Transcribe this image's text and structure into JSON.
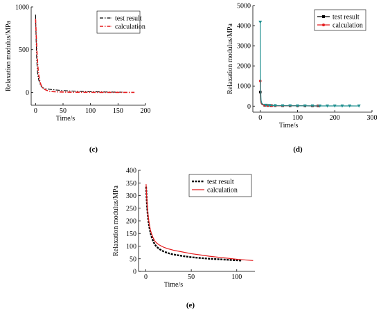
{
  "chart_data": [
    {
      "panel": "(c)",
      "type": "line",
      "xlabel": "Time/s",
      "ylabel": "Relaxation modulus/MPa",
      "xlim": [
        -8,
        200
      ],
      "ylim": [
        -150,
        1000
      ],
      "xticks": [
        0,
        50,
        100,
        150,
        200
      ],
      "yticks": [
        0,
        500,
        1000
      ],
      "legend_position": "top-right",
      "series": [
        {
          "name": "test result",
          "color": "#000000",
          "style": "dash-dot",
          "x": [
            0,
            1,
            2,
            3,
            4,
            5,
            6,
            8,
            10,
            12,
            15,
            20,
            25,
            30,
            40,
            50,
            60,
            80,
            100,
            120,
            140,
            158
          ],
          "y": [
            910,
            620,
            400,
            280,
            210,
            170,
            140,
            100,
            75,
            60,
            50,
            42,
            37,
            33,
            27,
            22,
            18,
            12,
            8,
            6,
            4,
            3
          ]
        },
        {
          "name": "calculation",
          "color": "#e41a1c",
          "style": "dash-dot",
          "x": [
            0,
            1,
            2,
            3,
            4,
            5,
            6,
            8,
            10,
            12,
            15,
            20,
            25,
            30,
            40,
            60,
            80,
            100,
            120,
            150,
            180
          ],
          "y": [
            860,
            700,
            550,
            420,
            320,
            250,
            195,
            125,
            85,
            60,
            40,
            25,
            15,
            10,
            6,
            3,
            2,
            1,
            0,
            0,
            0
          ]
        }
      ]
    },
    {
      "panel": "(d)",
      "type": "line",
      "xlabel": "Time/s",
      "ylabel": "Relaxation modulus/MPa",
      "xlim": [
        -20,
        300
      ],
      "ylim": [
        -300,
        5000
      ],
      "xticks": [
        0,
        100,
        200,
        300
      ],
      "yticks": [
        0,
        1000,
        2000,
        3000,
        4000,
        5000
      ],
      "legend_position": "top-right",
      "series": [
        {
          "name": "test result",
          "color": "#000000",
          "style": "solid-square-markers",
          "x": [
            0,
            0.5,
            1,
            2,
            3,
            5,
            8,
            12,
            20,
            30,
            40,
            60,
            80,
            100,
            120,
            140,
            155
          ],
          "y": [
            700,
            450,
            300,
            180,
            120,
            80,
            55,
            40,
            30,
            25,
            22,
            18,
            15,
            13,
            12,
            11,
            10
          ]
        },
        {
          "name": "calculation",
          "color": "#e41a1c",
          "style": "solid-circle-markers",
          "x": [
            0,
            0.5,
            1,
            2,
            3,
            5,
            8,
            12,
            20,
            30,
            40,
            60,
            80,
            100,
            120,
            140,
            155
          ],
          "y": [
            1250,
            800,
            450,
            250,
            150,
            90,
            60,
            40,
            30,
            25,
            22,
            18,
            15,
            13,
            12,
            11,
            10
          ]
        },
        {
          "color": "#1f8f8f",
          "style": "solid-triangle-markers",
          "x": [
            0,
            0.5,
            1,
            2,
            4,
            8,
            15,
            25,
            40,
            60,
            80,
            100,
            120,
            140,
            160,
            180,
            200,
            220,
            240,
            265
          ],
          "y": [
            4180,
            2000,
            800,
            300,
            150,
            80,
            50,
            35,
            25,
            20,
            17,
            15,
            13,
            12,
            11,
            10,
            10,
            9,
            9,
            8
          ]
        }
      ]
    },
    {
      "panel": "(e)",
      "type": "line",
      "xlabel": "Time/s",
      "ylabel": "Relaxation modulus/MPa",
      "xlim": [
        -8,
        120
      ],
      "ylim": [
        0,
        400
      ],
      "xticks": [
        0,
        50,
        100
      ],
      "yticks": [
        0,
        50,
        100,
        150,
        200,
        250,
        300,
        350,
        400
      ],
      "legend_position": "top-right",
      "series": [
        {
          "name": "test result",
          "color": "#000000",
          "style": "dense-square-markers",
          "x": [
            0.3,
            0.6,
            1,
            1.5,
            2,
            3,
            4,
            5,
            6,
            8,
            10,
            12,
            15,
            20,
            25,
            30,
            40,
            50,
            60,
            70,
            80,
            90,
            100,
            105
          ],
          "y": [
            335,
            315,
            280,
            250,
            228,
            195,
            172,
            155,
            140,
            120,
            106,
            97,
            88,
            78,
            72,
            67,
            61,
            56,
            53,
            50,
            48,
            46,
            44,
            43
          ]
        },
        {
          "name": "calculation",
          "color": "#e41a1c",
          "style": "solid",
          "x": [
            0.3,
            0.6,
            1,
            1.5,
            2,
            3,
            4,
            5,
            6,
            8,
            10,
            12,
            15,
            20,
            25,
            30,
            40,
            50,
            60,
            70,
            80,
            90,
            100,
            110,
            118
          ],
          "y": [
            345,
            320,
            292,
            262,
            240,
            207,
            183,
            165,
            152,
            133,
            120,
            112,
            104,
            95,
            89,
            84,
            77,
            70,
            65,
            60,
            56,
            52,
            48,
            45,
            43
          ]
        }
      ]
    }
  ]
}
